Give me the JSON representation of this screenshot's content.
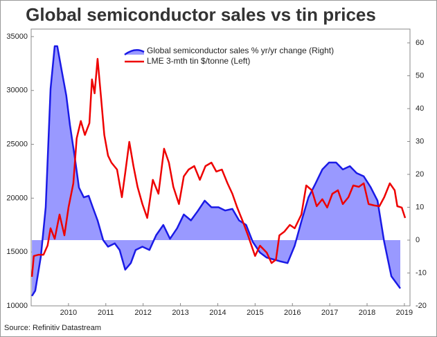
{
  "chart_data": {
    "type": "line",
    "title": "Global semiconductor sales vs tin prices",
    "source": "Source: Refinitiv Datastream",
    "xlim": [
      2009.0,
      2019.15
    ],
    "xticks": [
      2010,
      2011,
      2012,
      2013,
      2014,
      2015,
      2016,
      2017,
      2018,
      2019
    ],
    "ylim": [
      10000,
      35700
    ],
    "yticks": [
      10000,
      15000,
      20000,
      25000,
      30000,
      35000
    ],
    "y2lim": [
      -20,
      64.2
    ],
    "y2ticks": [
      -20,
      -10,
      0,
      10,
      20,
      30,
      40,
      50,
      60
    ],
    "series": [
      {
        "name": "Global semiconductor sales % yr/yr change (Right)",
        "axis": "y2",
        "area": true,
        "color": "#1a1ae6",
        "fill": "#9999ff",
        "x": [
          2009.02,
          2009.11,
          2009.26,
          2009.39,
          2009.52,
          2009.63,
          2009.7,
          2009.81,
          2009.94,
          2010.04,
          2010.17,
          2010.28,
          2010.41,
          2010.54,
          2010.65,
          2010.78,
          2010.93,
          2011.06,
          2011.24,
          2011.37,
          2011.52,
          2011.67,
          2011.8,
          2011.98,
          2012.17,
          2012.35,
          2012.54,
          2012.72,
          2012.91,
          2013.09,
          2013.28,
          2013.46,
          2013.65,
          2013.83,
          2014.02,
          2014.2,
          2014.39,
          2014.57,
          2014.76,
          2014.94,
          2015.13,
          2015.31,
          2015.5,
          2015.69,
          2015.87,
          2016.06,
          2016.24,
          2016.43,
          2016.61,
          2016.8,
          2016.98,
          2017.17,
          2017.35,
          2017.54,
          2017.72,
          2017.91,
          2018.09,
          2018.28,
          2018.46,
          2018.65,
          2018.78,
          2018.89
        ],
        "values": [
          -17,
          -15.4,
          -5,
          10,
          46,
          59,
          59,
          52,
          44,
          35,
          25,
          16,
          13,
          13.5,
          10,
          6,
          0,
          -2,
          -1,
          -3,
          -9,
          -7,
          -3,
          -2,
          -3,
          1.5,
          4.6,
          0.4,
          3.6,
          7.8,
          6,
          8.8,
          12,
          10,
          10,
          9,
          9.5,
          6,
          4.6,
          -0.6,
          -3.8,
          -5.3,
          -5.9,
          -6.5,
          -7,
          -1.7,
          5.7,
          13,
          17,
          21.5,
          23.6,
          23.6,
          21.5,
          22.5,
          20.4,
          19.4,
          16.2,
          12,
          -0.6,
          -11,
          -13,
          -14.7
        ]
      },
      {
        "name": "LME 3-mth tin $/tonne (Left)",
        "axis": "y",
        "area": false,
        "color": "#ee0000",
        "x": [
          2009.02,
          2009.07,
          2009.2,
          2009.33,
          2009.44,
          2009.52,
          2009.63,
          2009.76,
          2009.89,
          2010.0,
          2010.13,
          2010.22,
          2010.33,
          2010.44,
          2010.56,
          2010.63,
          2010.7,
          2010.78,
          2010.87,
          2010.96,
          2011.06,
          2011.15,
          2011.3,
          2011.43,
          2011.52,
          2011.63,
          2011.74,
          2011.85,
          2011.98,
          2012.11,
          2012.26,
          2012.41,
          2012.56,
          2012.69,
          2012.81,
          2012.96,
          2013.09,
          2013.22,
          2013.37,
          2013.52,
          2013.67,
          2013.83,
          2013.96,
          2014.11,
          2014.26,
          2014.39,
          2014.52,
          2014.67,
          2014.81,
          2015.0,
          2015.13,
          2015.31,
          2015.44,
          2015.56,
          2015.65,
          2015.78,
          2015.93,
          2016.06,
          2016.24,
          2016.37,
          2016.52,
          2016.65,
          2016.8,
          2016.93,
          2017.07,
          2017.22,
          2017.35,
          2017.5,
          2017.63,
          2017.78,
          2017.91,
          2018.04,
          2018.19,
          2018.33,
          2018.46,
          2018.61,
          2018.74,
          2018.81,
          2018.93,
          2019.02
        ],
        "values": [
          12700,
          14630,
          14750,
          14750,
          15600,
          17200,
          16230,
          18480,
          16550,
          19130,
          21380,
          25550,
          27160,
          25870,
          26970,
          31020,
          29730,
          32940,
          29410,
          25870,
          23950,
          23300,
          22660,
          20090,
          22340,
          25230,
          22980,
          21050,
          19450,
          18160,
          21700,
          20410,
          24590,
          23300,
          21050,
          19450,
          22020,
          22660,
          22980,
          21700,
          22980,
          23300,
          22470,
          22660,
          21380,
          20410,
          19130,
          17840,
          16550,
          14630,
          15590,
          14950,
          13980,
          14300,
          16550,
          16880,
          17520,
          17200,
          18480,
          21180,
          20730,
          19250,
          19900,
          19130,
          20410,
          20730,
          19450,
          20090,
          21180,
          21050,
          21380,
          19450,
          19320,
          19250,
          20090,
          21380,
          20730,
          19250,
          19130,
          18160
        ]
      }
    ]
  }
}
